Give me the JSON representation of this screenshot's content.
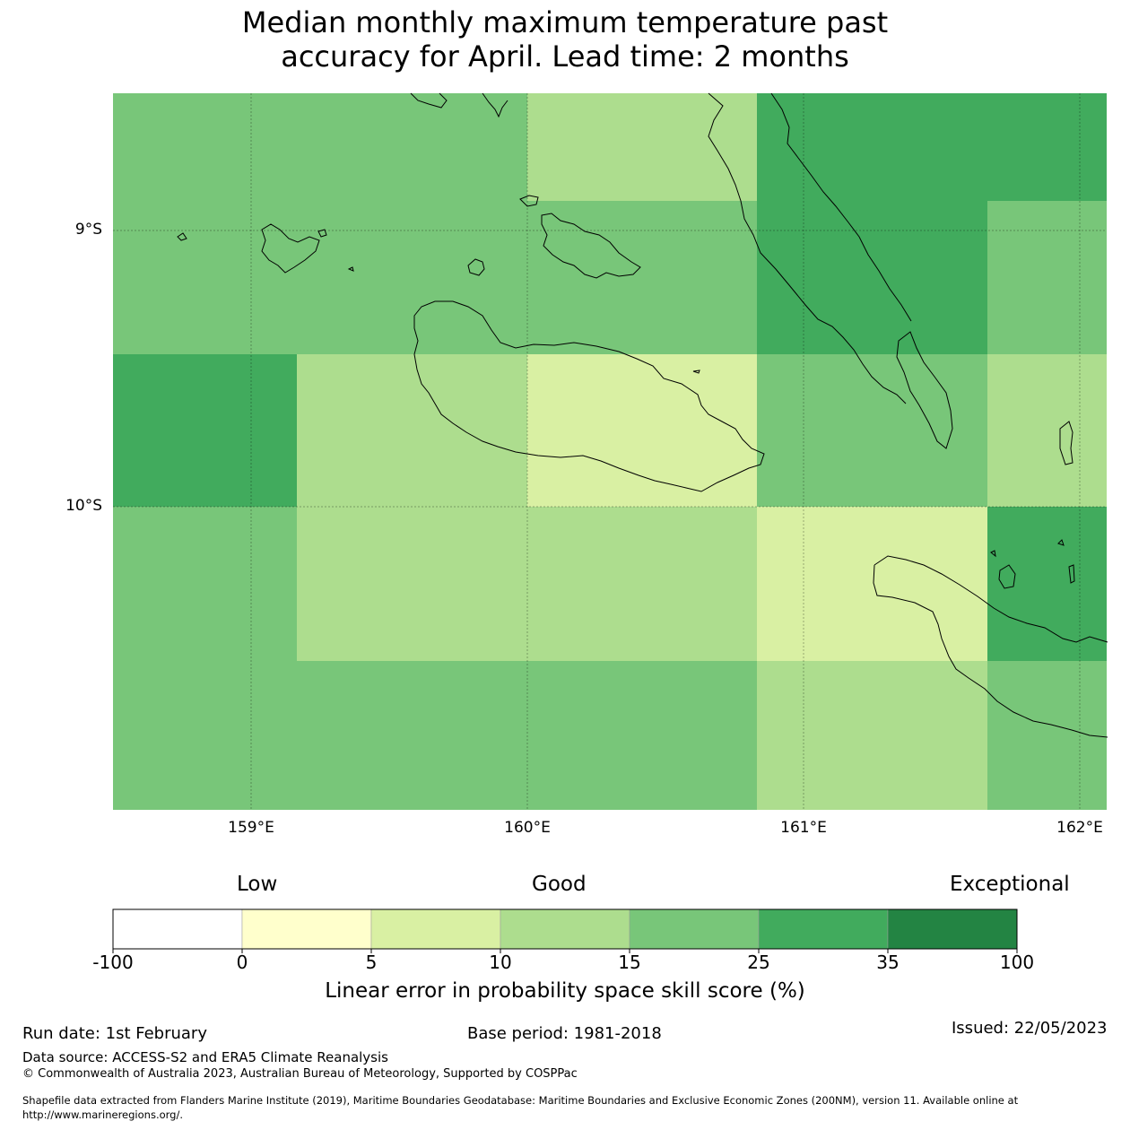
{
  "title_line1": "Median monthly maximum temperature past",
  "title_line2": "accuracy for April. Lead time: 2 months",
  "axes": {
    "lat_labels": [
      "9°S",
      "10°S"
    ],
    "lon_labels": [
      "159°E",
      "160°E",
      "161°E",
      "162°E"
    ]
  },
  "colors": {
    "c_15_25": "#78c679",
    "c_25_35": "#41ab5d",
    "c_10_15": "#addd8e",
    "c_5_10": "#d9f0a3"
  },
  "grid_cells": [
    [
      "15-25",
      "15-25",
      "10-15",
      "25-35",
      "25-35"
    ],
    [
      "15-25",
      "15-25",
      "15-25",
      "25-35",
      "15-25"
    ],
    [
      "25-35",
      "10-15",
      "5-10",
      "15-25",
      "10-15"
    ],
    [
      "15-25",
      "10-15",
      "10-15",
      "5-10",
      "25-35"
    ],
    [
      "15-25",
      "15-25",
      "15-25",
      "10-15",
      "15-25"
    ]
  ],
  "colorbar": {
    "headings": {
      "low": "Low",
      "good": "Good",
      "exceptional": "Exceptional"
    },
    "ticks": [
      "-100",
      "0",
      "5",
      "10",
      "15",
      "25",
      "35",
      "100"
    ],
    "bins": [
      {
        "range": "-100 to 0",
        "color": "#ffffff"
      },
      {
        "range": "0 to 5",
        "color": "#ffffcc"
      },
      {
        "range": "5 to 10",
        "color": "#d9f0a3"
      },
      {
        "range": "10 to 15",
        "color": "#addd8e"
      },
      {
        "range": "15 to 25",
        "color": "#78c679"
      },
      {
        "range": "25 to 35",
        "color": "#41ab5d"
      },
      {
        "range": "35 to 100",
        "color": "#238443"
      }
    ],
    "label": "Linear error in probability space skill score (%)"
  },
  "footer": {
    "run_date": "Run date: 1st February",
    "base_period": "Base period: 1981-2018",
    "issued": "Issued: 22/05/2023",
    "data_source": "Data source: ACCESS-S2 and ERA5 Climate Reanalysis",
    "copyright": "© Commonwealth of Australia 2023, Australian Bureau of Meteorology, Supported by COSPPac",
    "shapefile_line1": "Shapefile data extracted from Flanders Marine Institute (2019), Maritime Boundaries Geodatabase: Maritime Boundaries and Exclusive Economic Zones (200NM), version 11. Available online at",
    "shapefile_line2": "http://www.marineregions.org/."
  }
}
